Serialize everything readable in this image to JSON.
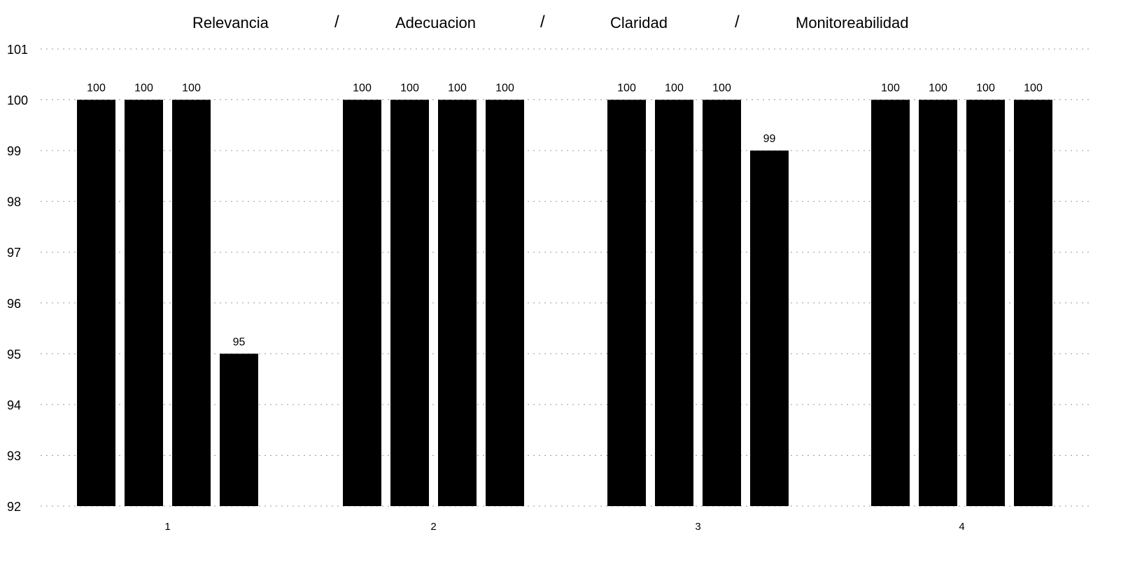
{
  "legend_words": [
    "Relevancia",
    "Adecuacion",
    "Claridad",
    "Monitoreabilidad"
  ],
  "separator": "/",
  "chart_data": {
    "type": "bar",
    "categories": [
      "1",
      "2",
      "3",
      "4"
    ],
    "series": [
      {
        "name": "Relevancia",
        "values": [
          100,
          100,
          100,
          100
        ]
      },
      {
        "name": "Adecuacion",
        "values": [
          100,
          100,
          100,
          100
        ]
      },
      {
        "name": "Claridad",
        "values": [
          100,
          100,
          100,
          100
        ]
      },
      {
        "name": "Monitoreabilidad",
        "values": [
          95,
          100,
          99,
          100
        ]
      }
    ],
    "yticks": [
      92,
      93,
      94,
      95,
      96,
      97,
      98,
      99,
      100,
      101
    ],
    "ylim": [
      92,
      101
    ],
    "grid": true,
    "legend_position": "top",
    "bar_color": "#000000"
  }
}
